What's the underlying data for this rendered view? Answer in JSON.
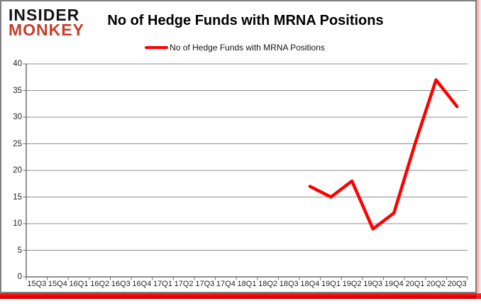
{
  "logo": {
    "line1": "INSIDER",
    "line2": "MONKEY"
  },
  "header": {
    "title": "No of Hedge Funds with MRNA Positions"
  },
  "legend": {
    "label": "No of Hedge Funds with MRNA Positions",
    "swatch_color": "#ff0000"
  },
  "colors": {
    "line": "#ff0000",
    "gridline": "#8c8c8c",
    "axis": "#6e6e6e",
    "card_border": "#808080",
    "logo_black": "#121212",
    "logo_red": "#c2402a",
    "accent_bar": "#ea0000",
    "background": "#ffffff",
    "text": "#262626"
  },
  "chart_data": {
    "type": "line",
    "title": "No of Hedge Funds with MRNA Positions",
    "xlabel": "",
    "ylabel": "",
    "categories": [
      "15Q3",
      "15Q4",
      "16Q1",
      "16Q2",
      "16Q3",
      "16Q4",
      "17Q1",
      "17Q2",
      "17Q3",
      "17Q4",
      "18Q1",
      "18Q2",
      "18Q3",
      "18Q4",
      "19Q1",
      "19Q2",
      "19Q3",
      "19Q4",
      "20Q1",
      "20Q2",
      "20Q3"
    ],
    "series": [
      {
        "name": "No of Hedge Funds with MRNA Positions",
        "color": "#ff0000",
        "values": [
          null,
          null,
          null,
          null,
          null,
          null,
          null,
          null,
          null,
          null,
          null,
          null,
          null,
          17,
          15,
          18,
          9,
          12,
          25,
          37,
          32
        ]
      }
    ],
    "ylim": [
      0,
      40
    ],
    "yticks": [
      0,
      5,
      10,
      15,
      20,
      25,
      30,
      35,
      40
    ],
    "grid": true,
    "legend_position": "top"
  }
}
